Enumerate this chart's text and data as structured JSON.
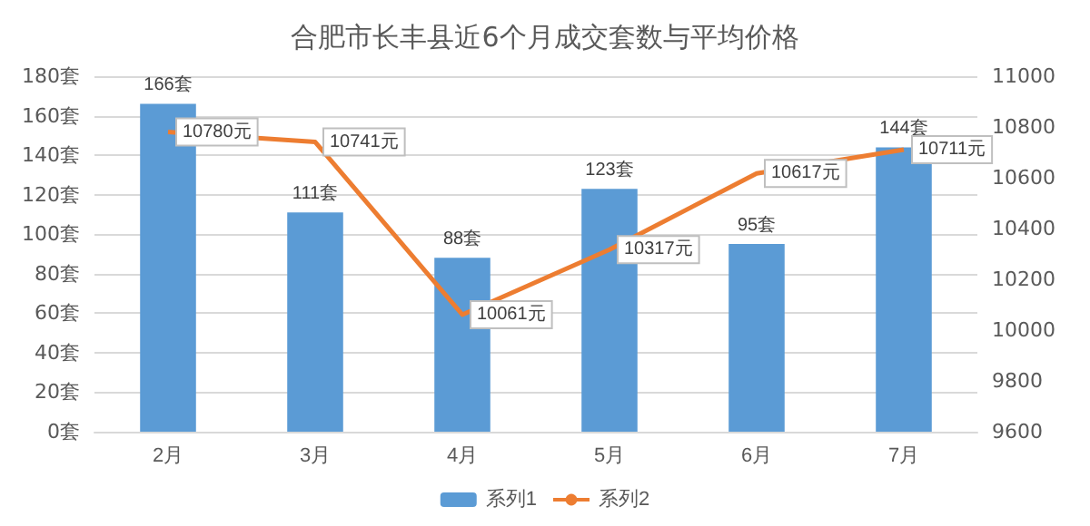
{
  "chart_data": {
    "type": "bar",
    "title": "合肥市长丰县近6个月成交套数与平均价格",
    "categories": [
      "2月",
      "3月",
      "4月",
      "5月",
      "6月",
      "7月"
    ],
    "series": [
      {
        "name": "系列1",
        "color": "#5b9bd5",
        "values": [
          166,
          111,
          88,
          123,
          95,
          144
        ],
        "value_labels": [
          "166套",
          "111套",
          "88套",
          "123套",
          "95套",
          "144套"
        ]
      },
      {
        "name": "系列2",
        "type": "line",
        "axis": "y2",
        "color": "#ed7d31",
        "values": [
          10780,
          10741,
          10061,
          10317,
          10617,
          10711
        ],
        "value_labels": [
          "10780元",
          "10741元",
          "10061元",
          "10317元",
          "10617元",
          "10711元"
        ]
      }
    ],
    "ylim": [
      0,
      180
    ],
    "yticks": [
      {
        "value": 0,
        "label": "0套"
      },
      {
        "value": 20,
        "label": "20套"
      },
      {
        "value": 40,
        "label": "40套"
      },
      {
        "value": 60,
        "label": "60套"
      },
      {
        "value": 80,
        "label": "80套"
      },
      {
        "value": 100,
        "label": "100套"
      },
      {
        "value": 120,
        "label": "120套"
      },
      {
        "value": 140,
        "label": "140套"
      },
      {
        "value": 160,
        "label": "160套"
      },
      {
        "value": 180,
        "label": "180套"
      }
    ],
    "y2lim": [
      9600,
      11000
    ],
    "y2ticks": [
      9600,
      9800,
      10000,
      10200,
      10400,
      10600,
      10800,
      11000
    ],
    "grid": "y",
    "legend": "bottom",
    "marker": "none",
    "line_style": "solid"
  }
}
